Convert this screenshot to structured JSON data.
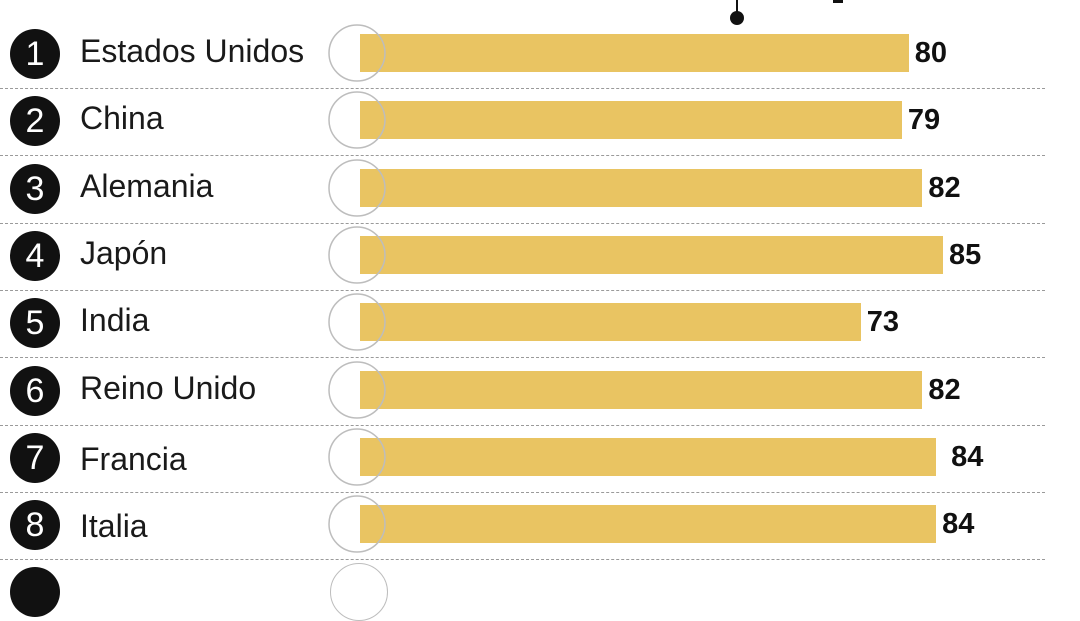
{
  "chart_data": {
    "type": "bar",
    "orientation": "horizontal",
    "xlim": [
      0,
      92
    ],
    "bar_color": "#e9c462",
    "categories": [
      "Estados Unidos",
      "China",
      "Alemania",
      "Japón",
      "India",
      "Reino Unido",
      "Francia",
      "Italia"
    ],
    "ranks": [
      "1",
      "2",
      "3",
      "4",
      "5",
      "6",
      "7",
      "8"
    ],
    "flags": [
      "us-flag-icon",
      "china-flag-icon",
      "germany-flag-icon",
      "japan-flag-icon",
      "india-flag-icon",
      "uk-flag-icon",
      "france-flag-icon",
      "italy-flag-icon"
    ],
    "values": [
      80,
      79,
      82,
      85,
      73,
      82,
      84,
      84
    ]
  }
}
